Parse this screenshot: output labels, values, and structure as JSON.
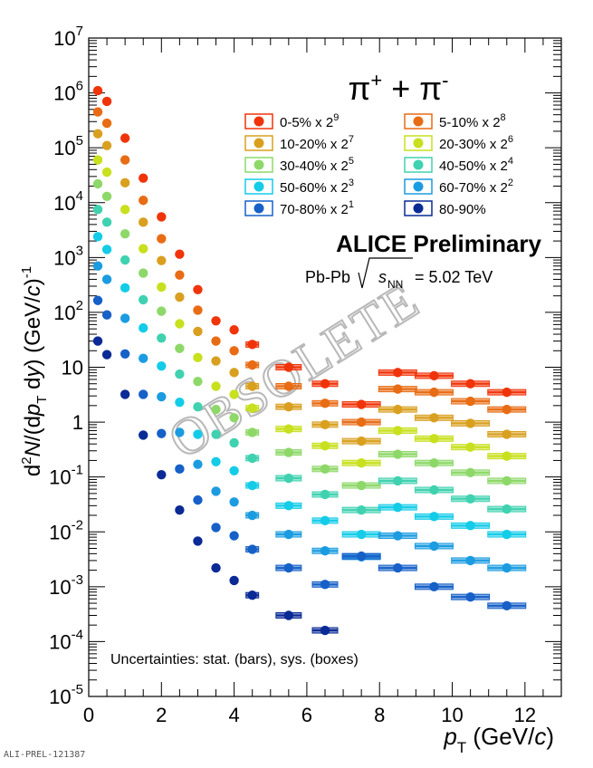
{
  "chart_data": {
    "type": "scatter",
    "title": "π⁺ + π⁻",
    "xlabel": "p_T (GeV/c)",
    "ylabel": "d²N/(dp_T dy) (GeV/c)⁻¹",
    "xlim": [
      0,
      13
    ],
    "ylim": [
      1e-05,
      10000000.0
    ],
    "yscale": "log",
    "x_ticks": [
      "0",
      "2",
      "4",
      "6",
      "8",
      "10",
      "12"
    ],
    "y_ticks": [
      "10^-5",
      "10^-4",
      "10^-3",
      "10^-2",
      "10^-1",
      "1",
      "10",
      "10^2",
      "10^3",
      "10^4",
      "10^5",
      "10^6",
      "10^7"
    ],
    "grid": false,
    "legend_position": "top-right",
    "series": [
      {
        "name": "0-5% x 2^9",
        "color": "#f0340a",
        "x": [
          0.25,
          0.5,
          1.0,
          1.5,
          2.0,
          2.5,
          3.0,
          3.5,
          4.0,
          4.5,
          5.5,
          6.5,
          7.5,
          8.5,
          9.5,
          10.5,
          11.5
        ],
        "values": [
          1100000.0,
          700000.0,
          150000.0,
          28000.0,
          5500,
          1150,
          260,
          70,
          48,
          26,
          10,
          5,
          2.1,
          8,
          7,
          5,
          3.5
        ]
      },
      {
        "name": "5-10% x 2^8",
        "color": "#e86c14",
        "x": [
          0.25,
          0.5,
          1.0,
          1.5,
          2.0,
          2.5,
          3.0,
          3.5,
          4.0,
          4.5,
          5.5,
          6.5,
          7.5,
          8.5,
          9.5,
          10.5,
          11.5
        ],
        "values": [
          450000.0,
          280000.0,
          60000.0,
          11000.0,
          2200,
          480,
          110,
          30,
          20,
          11,
          4.5,
          2.2,
          1.0,
          4,
          3.5,
          2.4,
          1.7
        ]
      },
      {
        "name": "10-20% x 2^7",
        "color": "#d9a020",
        "x": [
          0.25,
          0.5,
          1.0,
          1.5,
          2.0,
          2.5,
          3.0,
          3.5,
          4.0,
          4.5,
          5.5,
          6.5,
          7.5,
          8.5,
          9.5,
          10.5,
          11.5
        ],
        "values": [
          180000.0,
          110000.0,
          23000.0,
          4400,
          880,
          190,
          45,
          13,
          8,
          4.5,
          1.9,
          0.9,
          0.45,
          1.7,
          1.2,
          0.95,
          0.6
        ]
      },
      {
        "name": "20-30% x 2^6",
        "color": "#c8e01e",
        "x": [
          0.25,
          0.5,
          1.0,
          1.5,
          2.0,
          2.5,
          3.0,
          3.5,
          4.0,
          4.5,
          5.5,
          6.5,
          7.5,
          8.5,
          9.5,
          10.5,
          11.5
        ],
        "values": [
          60000.0,
          36000.0,
          7500.0,
          1450,
          290,
          62,
          15,
          4.5,
          3.2,
          1.8,
          0.75,
          0.37,
          0.18,
          0.7,
          0.5,
          0.35,
          0.24
        ]
      },
      {
        "name": "30-40% x 2^5",
        "color": "#8ed86a",
        "x": [
          0.25,
          0.5,
          1.0,
          1.5,
          2.0,
          2.5,
          3.0,
          3.5,
          4.0,
          4.5,
          5.5,
          6.5,
          7.5,
          8.5,
          9.5,
          10.5,
          11.5
        ],
        "values": [
          22000.0,
          13000.0,
          2700.0,
          520,
          105,
          22,
          5.5,
          1.7,
          1.2,
          0.65,
          0.28,
          0.14,
          0.07,
          0.26,
          0.18,
          0.12,
          0.085
        ]
      },
      {
        "name": "40-50% x 2^4",
        "color": "#40d2b0",
        "x": [
          0.25,
          0.5,
          1.0,
          1.5,
          2.0,
          2.5,
          3.0,
          3.5,
          4.0,
          4.5,
          5.5,
          6.5,
          7.5,
          8.5,
          9.5,
          10.5,
          11.5
        ],
        "values": [
          7500.0,
          4400.0,
          900,
          170,
          34,
          7.5,
          1.9,
          0.6,
          0.42,
          0.22,
          0.095,
          0.048,
          0.025,
          0.085,
          0.058,
          0.04,
          0.026
        ]
      },
      {
        "name": "50-60% x 2^3",
        "color": "#14cce8",
        "x": [
          0.25,
          0.5,
          1.0,
          1.5,
          2.0,
          2.5,
          3.0,
          3.5,
          4.0,
          4.5,
          5.5,
          6.5,
          7.5,
          8.5,
          9.5,
          10.5,
          11.5
        ],
        "values": [
          2400.0,
          1400.0,
          280,
          52,
          10.5,
          2.3,
          0.6,
          0.19,
          0.13,
          0.07,
          0.03,
          0.016,
          0.009,
          0.028,
          0.019,
          0.013,
          0.009
        ]
      },
      {
        "name": "60-70% x 2^2",
        "color": "#1c9ce0",
        "x": [
          0.25,
          0.5,
          1.0,
          1.5,
          2.0,
          2.5,
          3.0,
          3.5,
          4.0,
          4.5,
          5.5,
          6.5,
          7.5,
          8.5,
          9.5,
          10.5,
          11.5
        ],
        "values": [
          700,
          400,
          78,
          14.5,
          2.9,
          0.65,
          0.17,
          0.055,
          0.035,
          0.02,
          0.009,
          0.0045,
          0.0035,
          0.0085,
          0.0055,
          0.003,
          0.0022
        ]
      },
      {
        "name": "70-80% x 2^1",
        "color": "#1660c8",
        "x": [
          0.25,
          0.5,
          1.0,
          1.5,
          2.0,
          2.5,
          3.0,
          3.5,
          4.0,
          4.5,
          5.5,
          6.5,
          7.5,
          8.5,
          9.5,
          10.5,
          11.5
        ],
        "values": [
          165,
          90,
          17.5,
          3.2,
          0.62,
          0.14,
          0.038,
          0.012,
          0.0085,
          0.0048,
          0.0022,
          0.0011,
          0.0036,
          0.0022,
          0.001,
          0.00065,
          0.00045
        ]
      },
      {
        "name": "80-90%",
        "color": "#0a2a96",
        "x": [
          0.25,
          0.5,
          1.0,
          1.5,
          2.0,
          2.5,
          3.0,
          3.5,
          4.0,
          4.5,
          5.5,
          6.5
        ],
        "values": [
          30,
          17,
          3.2,
          0.58,
          0.11,
          0.025,
          0.0068,
          0.0022,
          0.0013,
          0.0007,
          0.0003,
          0.00016
        ]
      }
    ]
  },
  "labels": {
    "title_particle": "π",
    "collaboration": "ALICE Preliminary",
    "system": "Pb-Pb",
    "energy_var": "s",
    "energy_sub": "NN",
    "energy_value": "= 5.02 TeV",
    "uncertainties": "Uncertainties: stat. (bars), sys. (boxes)",
    "watermark": "OBSOLETE",
    "doc_id": "ALI-PREL-121387"
  }
}
